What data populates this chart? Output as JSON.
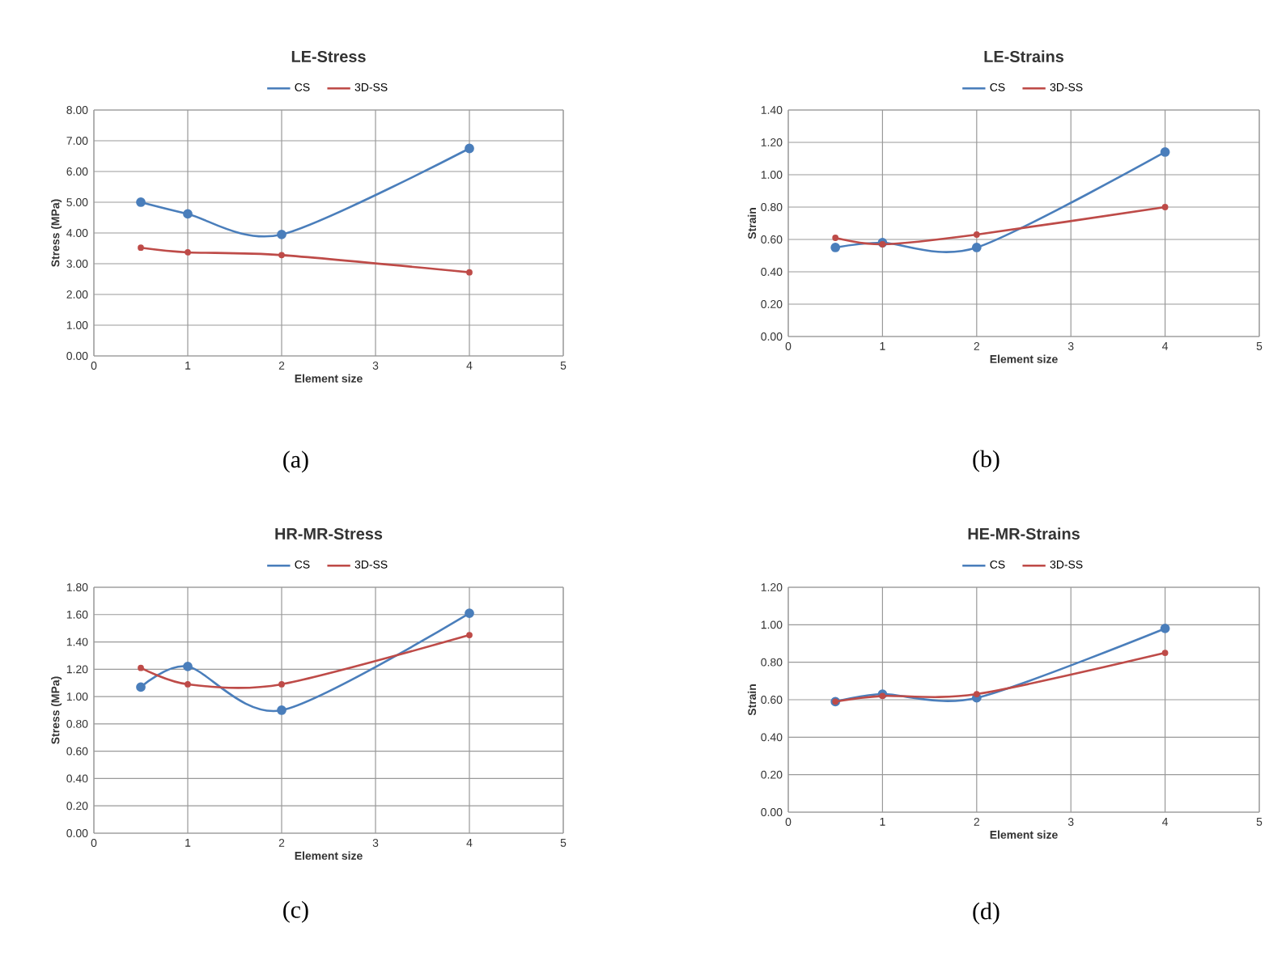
{
  "chart_data": [
    {
      "type": "line",
      "title": "LE-Stress",
      "xlabel": "Element size",
      "ylabel": "Stress (MPa)",
      "x": [
        0.5,
        1,
        2,
        4
      ],
      "series": [
        {
          "name": "CS",
          "color": "#4a7ebb",
          "values": [
            5.0,
            4.62,
            3.95,
            6.75
          ]
        },
        {
          "name": "3D-SS",
          "color": "#be4b48",
          "values": [
            3.52,
            3.37,
            3.28,
            2.72
          ]
        }
      ],
      "xlim": [
        0,
        5
      ],
      "xticks": [
        0,
        1,
        2,
        3,
        4,
        5
      ],
      "ylim": [
        0,
        8
      ],
      "yticks": [
        {
          "value": 0,
          "label": "0.00"
        },
        {
          "value": 1,
          "label": "1.00"
        },
        {
          "value": 2,
          "label": "2.00"
        },
        {
          "value": 3,
          "label": "3.00"
        },
        {
          "value": 4,
          "label": "4.00"
        },
        {
          "value": 5,
          "label": "5.00"
        },
        {
          "value": 6,
          "label": "6.00"
        },
        {
          "value": 7,
          "label": "7.00"
        },
        {
          "value": 8,
          "label": "8.00"
        }
      ],
      "grid": true,
      "legend": "top",
      "marker": "circle",
      "line_style": "solid",
      "annotations": [
        "(a)"
      ]
    },
    {
      "type": "line",
      "title": "LE-Strains",
      "xlabel": "Element size",
      "ylabel": "Strain",
      "x": [
        0.5,
        1,
        2,
        4
      ],
      "series": [
        {
          "name": "CS",
          "color": "#4a7ebb",
          "values": [
            0.55,
            0.58,
            0.55,
            1.14
          ]
        },
        {
          "name": "3D-SS",
          "color": "#be4b48",
          "values": [
            0.61,
            0.57,
            0.63,
            0.8
          ]
        }
      ],
      "xlim": [
        0,
        5
      ],
      "xticks": [
        0,
        1,
        2,
        3,
        4,
        5
      ],
      "ylim": [
        0,
        1.4
      ],
      "yticks": [
        {
          "value": 0,
          "label": "0.00"
        },
        {
          "value": 0.2,
          "label": "0.20"
        },
        {
          "value": 0.4,
          "label": "0.40"
        },
        {
          "value": 0.6,
          "label": "0.60"
        },
        {
          "value": 0.8,
          "label": "0.80"
        },
        {
          "value": 1.0,
          "label": "1.00"
        },
        {
          "value": 1.2,
          "label": "1.20"
        },
        {
          "value": 1.4,
          "label": "1.40"
        }
      ],
      "grid": true,
      "legend": "top",
      "marker": "circle",
      "line_style": "solid",
      "annotations": [
        "(b)"
      ]
    },
    {
      "type": "line",
      "title": "HR-MR-Stress",
      "xlabel": "Element size",
      "ylabel": "Stress (MPa)",
      "x": [
        0.5,
        1,
        2,
        4
      ],
      "series": [
        {
          "name": "CS",
          "color": "#4a7ebb",
          "values": [
            1.07,
            1.22,
            0.9,
            1.61
          ]
        },
        {
          "name": "3D-SS",
          "color": "#be4b48",
          "values": [
            1.21,
            1.09,
            1.09,
            1.45
          ]
        }
      ],
      "xlim": [
        0,
        5
      ],
      "xticks": [
        0,
        1,
        2,
        3,
        4,
        5
      ],
      "ylim": [
        0,
        1.8
      ],
      "yticks": [
        {
          "value": 0,
          "label": "0.00"
        },
        {
          "value": 0.2,
          "label": "0.20"
        },
        {
          "value": 0.4,
          "label": "0.40"
        },
        {
          "value": 0.6,
          "label": "0.60"
        },
        {
          "value": 0.8,
          "label": "0.80"
        },
        {
          "value": 1.0,
          "label": "1.00"
        },
        {
          "value": 1.2,
          "label": "1.20"
        },
        {
          "value": 1.4,
          "label": "1.40"
        },
        {
          "value": 1.6,
          "label": "1.60"
        },
        {
          "value": 1.8,
          "label": "1.80"
        }
      ],
      "grid": true,
      "legend": "top",
      "marker": "circle",
      "line_style": "solid",
      "annotations": [
        "(c)"
      ]
    },
    {
      "type": "line",
      "title": "HE-MR-Strains",
      "xlabel": "Element size",
      "ylabel": "Strain",
      "x": [
        0.5,
        1,
        2,
        4
      ],
      "series": [
        {
          "name": "CS",
          "color": "#4a7ebb",
          "values": [
            0.59,
            0.63,
            0.61,
            0.98
          ]
        },
        {
          "name": "3D-SS",
          "color": "#be4b48",
          "values": [
            0.59,
            0.62,
            0.63,
            0.85
          ]
        }
      ],
      "xlim": [
        0,
        5
      ],
      "xticks": [
        0,
        1,
        2,
        3,
        4,
        5
      ],
      "ylim": [
        0,
        1.2
      ],
      "yticks": [
        {
          "value": 0,
          "label": "0.00"
        },
        {
          "value": 0.2,
          "label": "0.20"
        },
        {
          "value": 0.4,
          "label": "0.40"
        },
        {
          "value": 0.6,
          "label": "0.60"
        },
        {
          "value": 0.8,
          "label": "0.80"
        },
        {
          "value": 1.0,
          "label": "1.00"
        },
        {
          "value": 1.2,
          "label": "1.20"
        }
      ],
      "grid": true,
      "legend": "top",
      "marker": "circle",
      "line_style": "solid",
      "annotations": [
        "(d)"
      ]
    }
  ]
}
